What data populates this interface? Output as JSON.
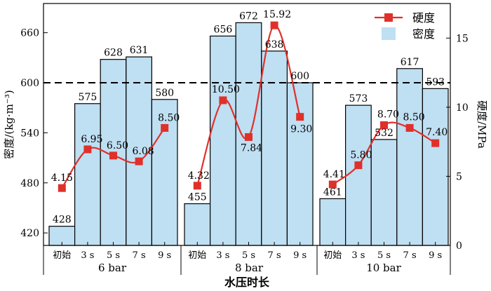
{
  "chart_data": {
    "type": "bar+line",
    "xlabel": "水压时长",
    "y_left_label": "密度/(kg·m⁻³)",
    "y_right_label": "硬度/MPa",
    "y_left_range": [
      405,
      695
    ],
    "y_right_range": [
      0,
      17.5
    ],
    "y_left_ticks": [
      "420",
      "480",
      "540",
      "600",
      "660"
    ],
    "y_right_ticks": [
      "0",
      "5",
      "10",
      "15"
    ],
    "reference_line": {
      "value": 600,
      "axis": "left",
      "style": "dashed"
    },
    "groups": [
      {
        "label": "6 bar",
        "categories": [
          "初始",
          "3 s",
          "5 s",
          "7 s",
          "9 s"
        ]
      },
      {
        "label": "8 bar",
        "categories": [
          "初始",
          "3 s",
          "5 s",
          "7 s",
          "9 s"
        ]
      },
      {
        "label": "10 bar",
        "categories": [
          "初始",
          "3 s",
          "5 s",
          "7 s",
          "9 s"
        ]
      }
    ],
    "series": [
      {
        "name": "密度",
        "kind": "bar",
        "axis": "left",
        "color": "#bfdff2",
        "values": [
          [
            428,
            575,
            628,
            631,
            580
          ],
          [
            455,
            656,
            672,
            638,
            600
          ],
          [
            461,
            573,
            532,
            617,
            593
          ]
        ],
        "labels": [
          [
            "428",
            "575",
            "628",
            "631",
            "580"
          ],
          [
            "455",
            "656",
            "672",
            "638",
            "600"
          ],
          [
            "461",
            "573",
            "532",
            "617",
            "593"
          ]
        ]
      },
      {
        "name": "硬度",
        "kind": "line",
        "axis": "right",
        "color": "#e0302a",
        "values": [
          [
            4.15,
            6.95,
            6.5,
            6.08,
            8.5
          ],
          [
            4.32,
            10.5,
            7.84,
            15.92,
            9.3
          ],
          [
            4.41,
            5.8,
            8.7,
            8.5,
            7.4
          ]
        ],
        "labels": [
          [
            "4.15",
            "6.95",
            "6.50",
            "6.08",
            "8.50"
          ],
          [
            "4.32",
            "10.50",
            "7.84",
            "15.92",
            "9.30"
          ],
          [
            "4.41",
            "5.80",
            "8.70",
            "8.50",
            "7.40"
          ]
        ]
      }
    ],
    "legend": {
      "placement": "top-right"
    }
  }
}
